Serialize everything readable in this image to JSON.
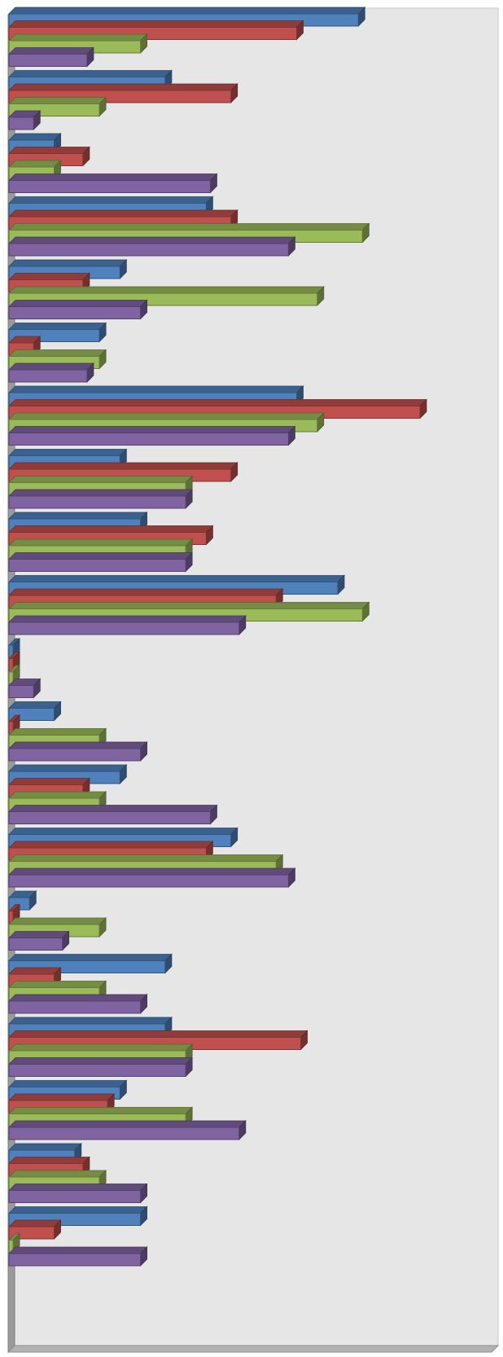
{
  "chart_data": {
    "type": "bar",
    "orientation": "horizontal",
    "three_d": true,
    "grid": false,
    "legend": "none",
    "title": "",
    "xlabel": "",
    "ylabel": "",
    "xlim": [
      0,
      100
    ],
    "colors": {
      "plot_background": "#e6e6e6",
      "floor": "#9a9a9a",
      "series": [
        "#4f81bd",
        "#c0504d",
        "#9bbb59",
        "#8064a2"
      ]
    },
    "categories_count": 20,
    "series": [
      {
        "values": [
          85,
          38,
          11,
          48,
          27,
          22,
          70,
          27,
          32,
          80,
          1,
          11,
          27,
          54,
          5,
          38,
          38,
          27,
          16,
          32
        ]
      },
      {
        "values": [
          70,
          54,
          18,
          54,
          18,
          6,
          100,
          54,
          48,
          65,
          1,
          1,
          18,
          48,
          1,
          11,
          71,
          24,
          18,
          11
        ]
      },
      {
        "values": [
          32,
          22,
          11,
          86,
          75,
          22,
          75,
          43,
          43,
          86,
          1,
          22,
          22,
          65,
          22,
          22,
          43,
          43,
          22,
          1
        ]
      },
      {
        "values": [
          19,
          6,
          49,
          68,
          32,
          19,
          68,
          43,
          43,
          56,
          6,
          32,
          49,
          68,
          13,
          32,
          43,
          56,
          32,
          32
        ]
      }
    ]
  }
}
